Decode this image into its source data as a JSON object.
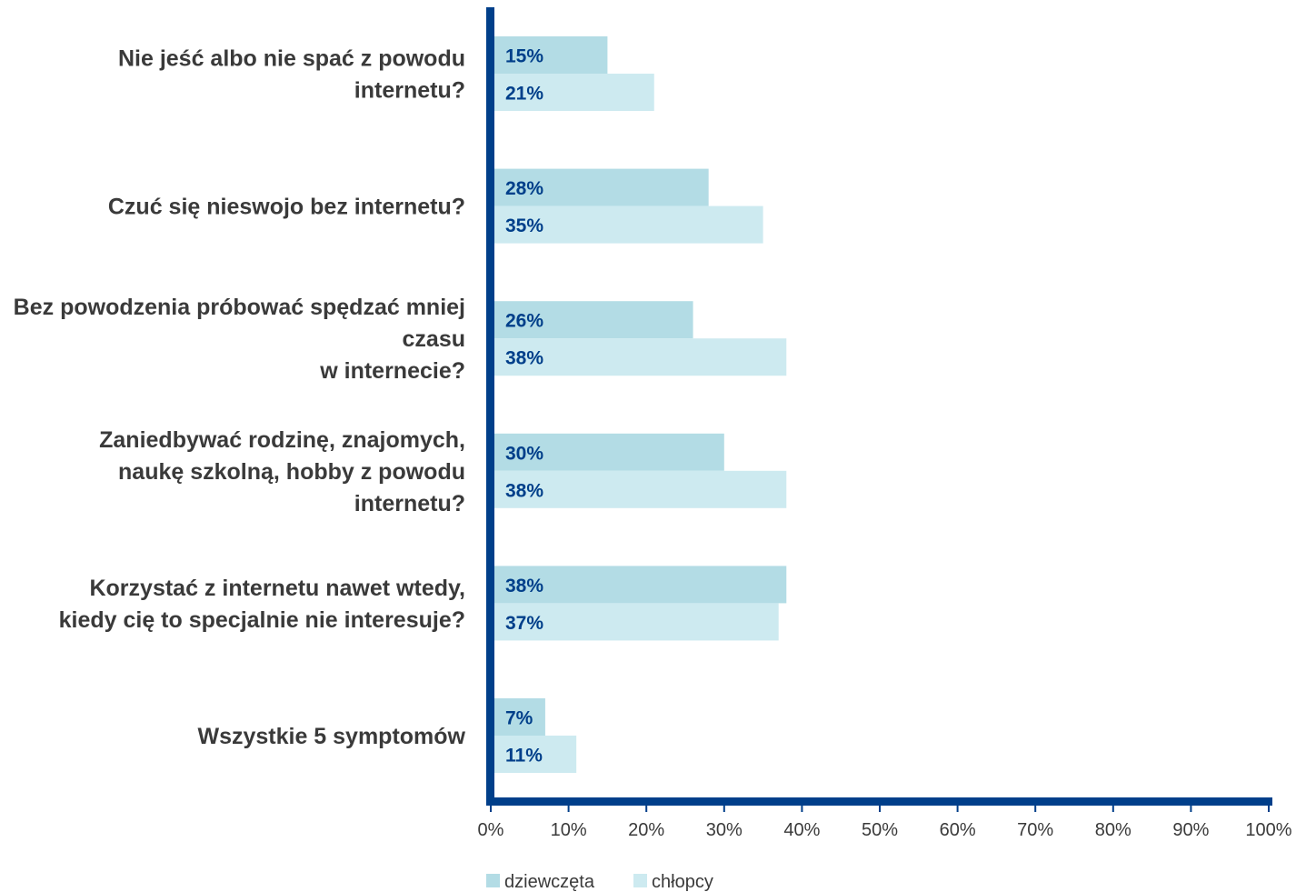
{
  "chart_data": {
    "type": "bar",
    "orientation": "horizontal",
    "categories": [
      [
        "Nie jeść albo nie spać z powodu",
        "internetu?"
      ],
      [
        "Czuć się nieswojo bez internetu?"
      ],
      [
        "Bez powodzenia próbować spędzać mniej",
        "czasu",
        "w internecie?"
      ],
      [
        "Zaniedbywać rodzinę, znajomych,",
        "naukę szkolną, hobby z powodu",
        "internetu?"
      ],
      [
        "Korzystać z internetu nawet wtedy,",
        "kiedy cię to specjalnie nie interesuje?"
      ],
      [
        "Wszystkie 5 symptomów"
      ]
    ],
    "series": [
      {
        "name": "dziewczęta",
        "color": "#b3dce5",
        "values": [
          15,
          28,
          26,
          30,
          38,
          7
        ],
        "labels": [
          "15%",
          "28%",
          "26%",
          "30%",
          "38%",
          "7%"
        ]
      },
      {
        "name": "chłopcy",
        "color": "#cdeaf0",
        "values": [
          21,
          35,
          38,
          38,
          37,
          11
        ],
        "labels": [
          "21%",
          "35%",
          "38%",
          "38%",
          "37%",
          "11%"
        ]
      }
    ],
    "xlim": [
      0,
      100
    ],
    "xticks": [
      0,
      10,
      20,
      30,
      40,
      50,
      60,
      70,
      80,
      90,
      100
    ],
    "xtick_labels": [
      "0%",
      "10%",
      "20%",
      "30%",
      "40%",
      "50%",
      "60%",
      "70%",
      "80%",
      "90%",
      "100%"
    ],
    "title": "",
    "xlabel": "",
    "ylabel": "",
    "grid": false,
    "legend_position": "bottom-left",
    "axis_color": "#003f8a",
    "label_color": "#003f8a"
  }
}
